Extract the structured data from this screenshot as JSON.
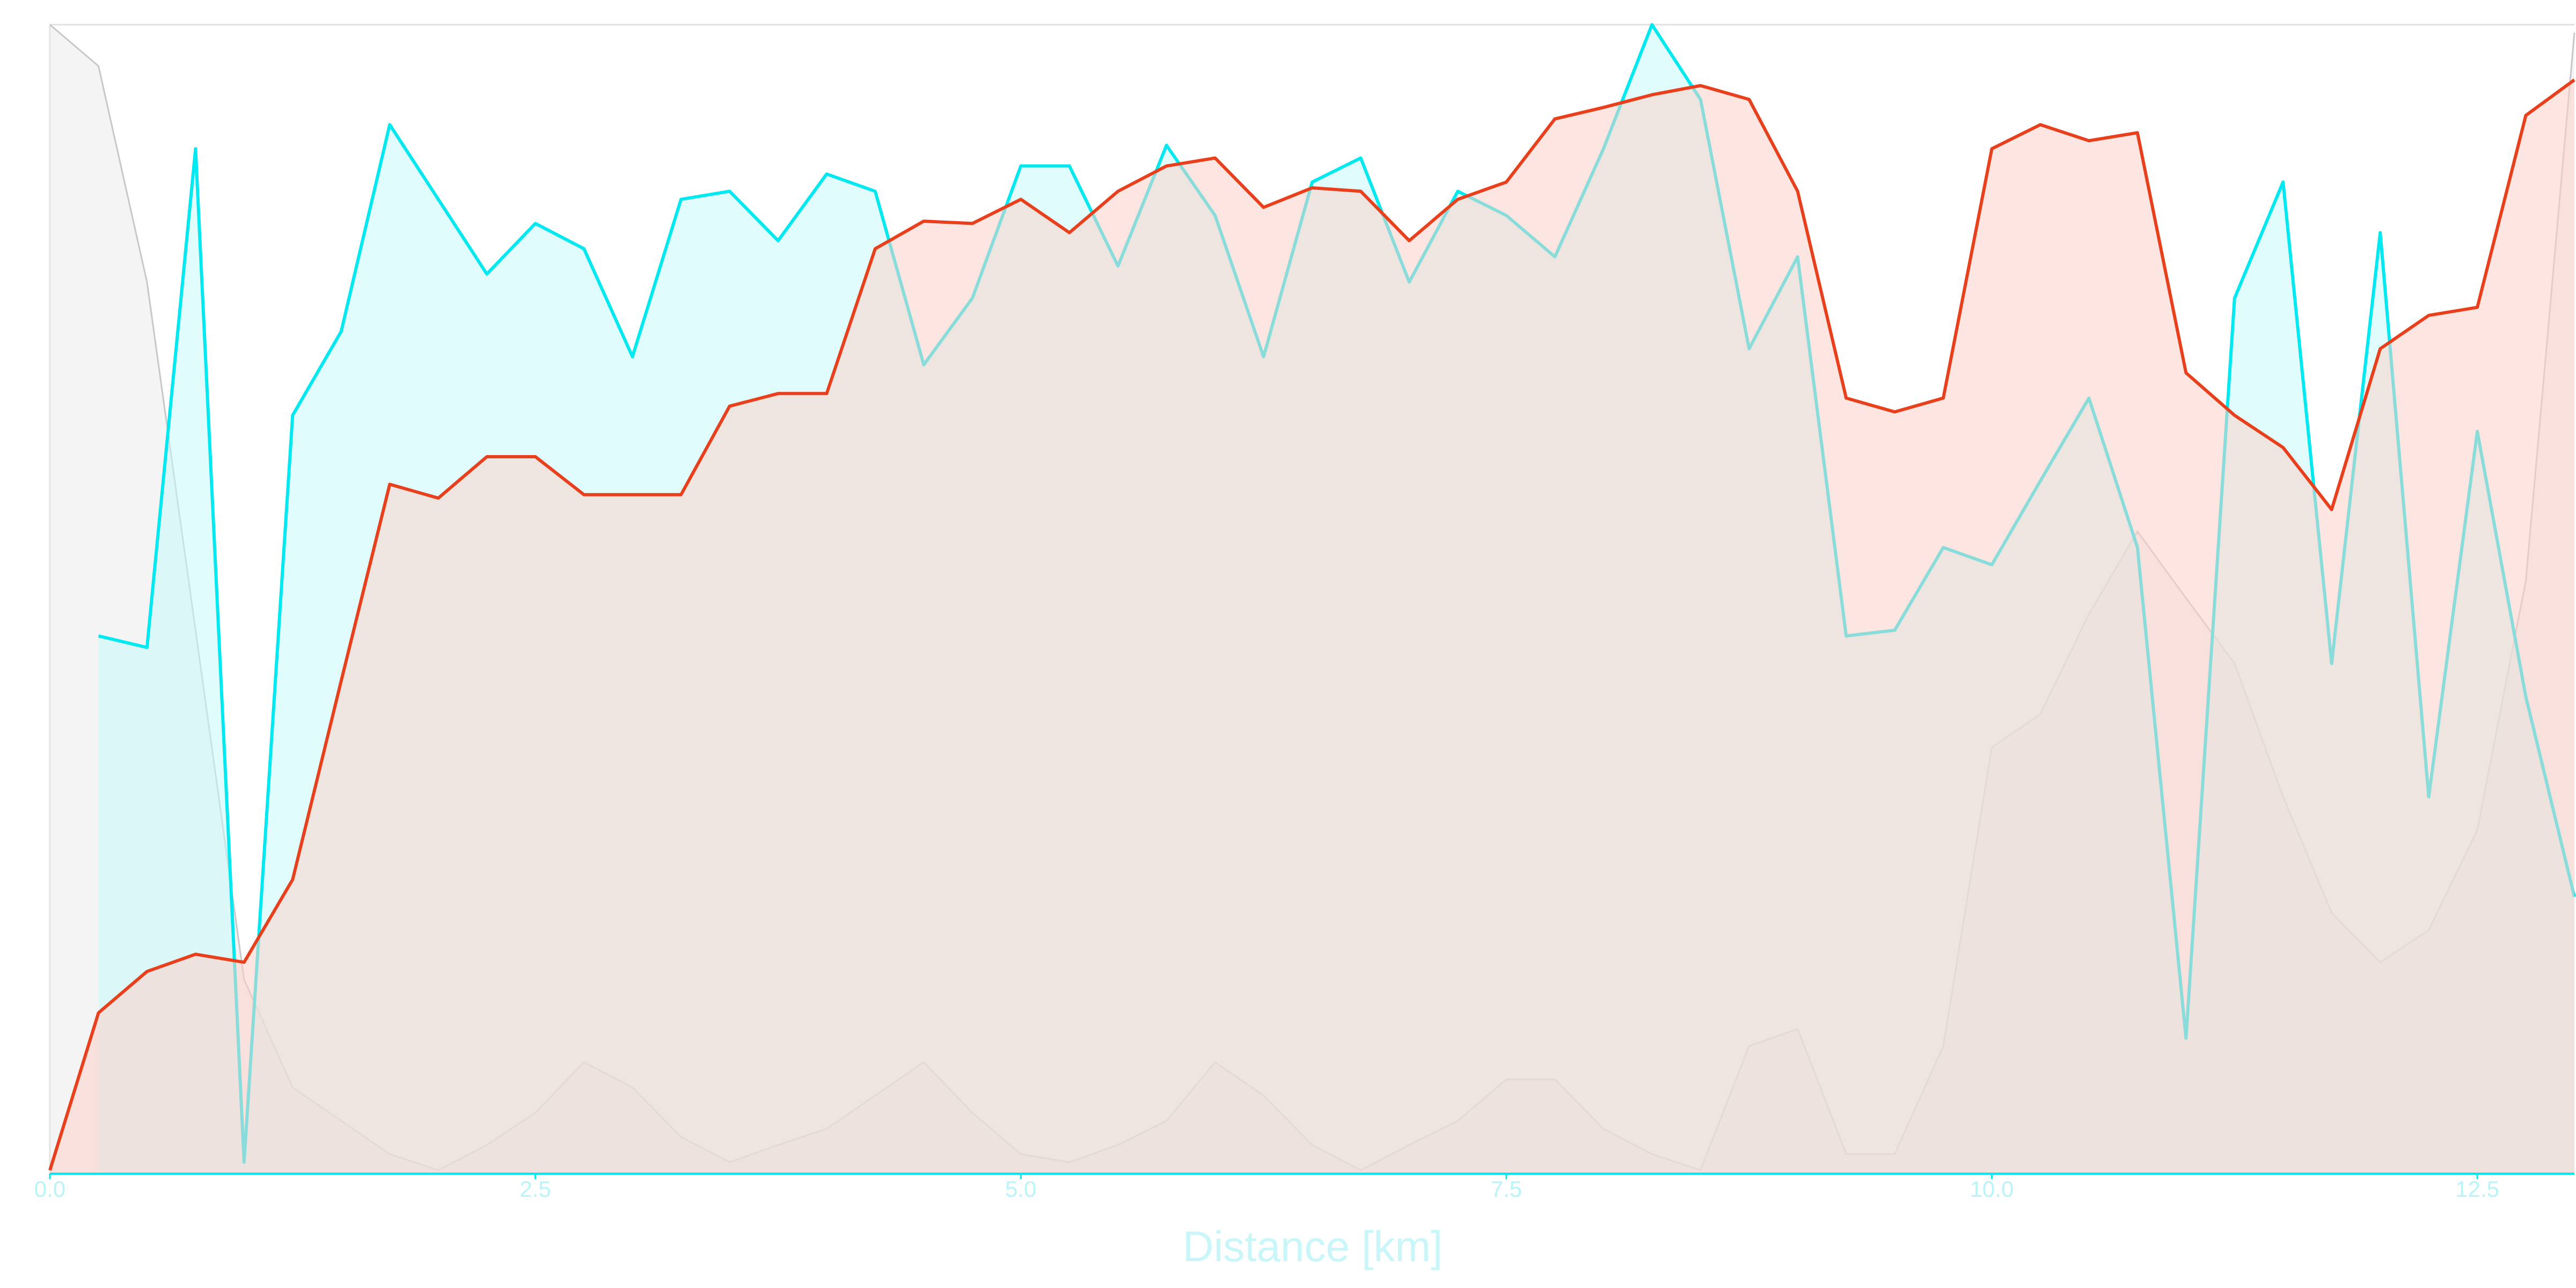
{
  "chart_data": {
    "type": "area",
    "xlabel": "Distance [km]",
    "x": [
      0,
      0.25,
      0.5,
      0.75,
      1,
      1.25,
      1.5,
      1.75,
      2,
      2.25,
      2.5,
      2.75,
      3,
      3.25,
      3.5,
      3.75,
      4,
      4.25,
      4.5,
      4.75,
      5,
      5.25,
      5.5,
      5.75,
      6,
      6.25,
      6.5,
      6.75,
      7,
      7.25,
      7.5,
      7.75,
      8,
      8.25,
      8.5,
      8.75,
      9,
      9.25,
      9.5,
      9.75,
      10,
      10.25,
      10.5,
      10.75,
      11,
      11.25,
      11.5,
      11.75,
      12,
      12.25,
      12.5,
      12.75,
      13
    ],
    "series": [
      {
        "color": "#c8c8c8",
        "fill": "#ebebeb",
        "values": [
          100.0,
          96.4,
          77.6,
          47.3,
          16.9,
          7.5,
          4.6,
          1.7,
          0.3,
          2.5,
          5.3,
          9.7,
          7.5,
          3.2,
          1.0,
          2.5,
          3.9,
          6.8,
          9.7,
          5.3,
          1.7,
          1.0,
          2.5,
          4.6,
          9.7,
          6.8,
          2.5,
          0.3,
          2.5,
          4.6,
          8.2,
          8.2,
          3.9,
          1.7,
          0.3,
          11.1,
          12.6,
          1.7,
          1.7,
          11.1,
          37.1,
          40.0,
          48.7,
          55.9,
          50.1,
          44.4,
          32.8,
          22.7,
          18.4,
          21.2,
          29.9,
          51.6,
          99.3
        ]
      },
      {
        "color": "#00e8f0",
        "fill": "#c8fafc",
        "values": [
          null,
          46.8,
          45.8,
          89.2,
          1.0,
          66.0,
          73.3,
          91.3,
          84.8,
          78.3,
          82.7,
          80.5,
          71.1,
          84.8,
          85.5,
          81.2,
          87.0,
          85.5,
          70.4,
          76.2,
          87.7,
          87.7,
          79.0,
          89.5,
          83.4,
          71.1,
          86.3,
          88.4,
          77.6,
          85.5,
          83.4,
          79.8,
          89.2,
          100.0,
          93.5,
          71.8,
          79.8,
          46.8,
          47.3,
          54.5,
          53.0,
          60.3,
          67.5,
          54.5,
          11.8,
          76.2,
          86.3,
          44.4,
          81.9,
          32.8,
          64.6,
          41.5,
          24.1
        ]
      },
      {
        "color": "#e8401c",
        "fill": "#fcd2c8",
        "values": [
          0.3,
          14.0,
          17.6,
          19.1,
          18.4,
          25.6,
          42.9,
          60.0,
          58.8,
          62.4,
          62.4,
          59.1,
          59.1,
          59.1,
          66.8,
          67.9,
          67.9,
          80.5,
          82.9,
          82.7,
          84.8,
          81.9,
          85.5,
          87.7,
          88.4,
          84.1,
          85.8,
          85.5,
          81.2,
          84.8,
          86.3,
          91.8,
          92.8,
          93.9,
          94.7,
          93.5,
          85.5,
          67.5,
          66.3,
          67.5,
          89.2,
          91.3,
          89.9,
          90.6,
          69.7,
          66.0,
          63.2,
          57.8,
          71.8,
          74.7,
          75.4,
          92.1,
          95.2
        ]
      }
    ],
    "xlim": [
      0,
      13
    ],
    "xticks": [
      {
        "value": 0,
        "label": "0.0"
      },
      2.5,
      {
        "value": 5,
        "label": "5.0"
      },
      7.5,
      {
        "value": 10,
        "label": "10.0"
      },
      12.5
    ],
    "ylim": [
      0,
      100
    ],
    "grid": false
  }
}
